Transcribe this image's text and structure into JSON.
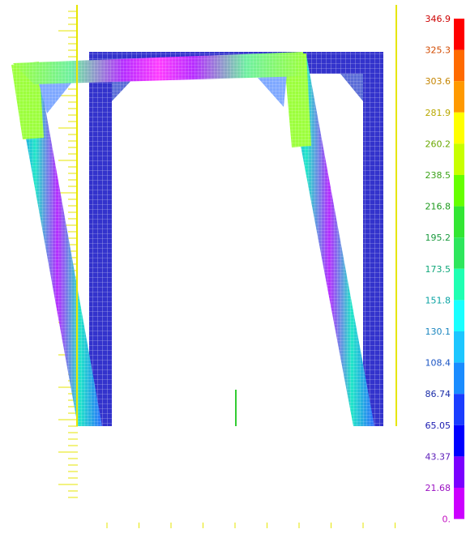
{
  "legend": {
    "labels": [
      "346.9",
      "325.3",
      "303.6",
      "281.9",
      "260.2",
      "238.5",
      "216.8",
      "195.2",
      "173.5",
      "151.8",
      "130.1",
      "108.4",
      "86.74",
      "65.05",
      "43.37",
      "21.68",
      "0."
    ],
    "colors": [
      "#ff0000",
      "#ff6a00",
      "#ff9900",
      "#ffff00",
      "#c8ff00",
      "#66ff00",
      "#33e633",
      "#2ee65c",
      "#1fffb2",
      "#19ffff",
      "#1cc6ff",
      "#1a8cff",
      "#1a3dff",
      "#0000ff",
      "#7b00ff",
      "#cc00ff",
      "#ff00ff"
    ],
    "label_colors": [
      "#cc0000",
      "#d24a00",
      "#c48400",
      "#b8a800",
      "#6aa800",
      "#3ca31a",
      "#1c9a1c",
      "#1a9a3e",
      "#10a77a",
      "#0aa3a3",
      "#1b86bf",
      "#1a54c4",
      "#1a2ca8",
      "#1a1ab0",
      "#5a1ab8",
      "#9a10c2",
      "#c410c2"
    ]
  },
  "model": {
    "frame_color": "#3333cc",
    "mesh_line_color": "#ffffff",
    "stress_colors": {
      "high": "#9cff3c",
      "mid": "#1fe6c8",
      "low": "#2b6cff",
      "core": "#b62cff",
      "core_hot": "#ff3cff",
      "gusset": "#8a9cff"
    },
    "axis_color": "#e6e600",
    "marker_color": "#33cc33"
  }
}
